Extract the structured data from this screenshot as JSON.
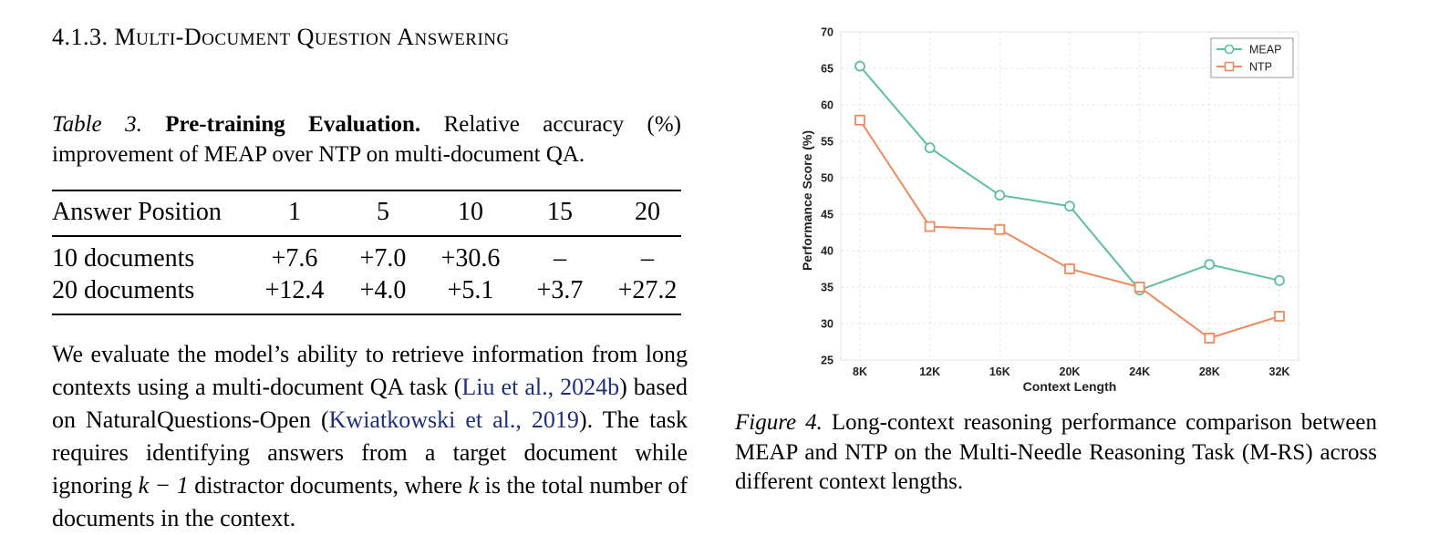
{
  "section": {
    "number": "4.1.3.",
    "words": [
      [
        "M",
        "ULTI"
      ],
      [
        "D",
        "OCUMENT"
      ],
      [
        "Q",
        "UESTION"
      ],
      [
        "A",
        "NSWERING"
      ]
    ]
  },
  "table_caption": {
    "label": "Table 3.",
    "bold": "Pre-training Evaluation.",
    "text": "Relative accuracy (%) improvement of MEAP over NTP on multi-document QA."
  },
  "table": {
    "header": [
      "Answer Position",
      "1",
      "5",
      "10",
      "15",
      "20"
    ],
    "rows": [
      [
        "10 documents",
        "+7.6",
        "+7.0",
        "+30.6",
        "–",
        "–"
      ],
      [
        "20 documents",
        "+12.4",
        "+4.0",
        "+5.1",
        "+3.7",
        "+27.2"
      ]
    ]
  },
  "paragraph": {
    "p1": "We evaluate the model’s ability to retrieve information from long contexts using a multi-document QA task (",
    "cite1": "Liu et al., 2024b",
    "p2": ") based on NaturalQuestions-Open (",
    "cite2": "Kwiatkowski et al., 2019",
    "p3": "). The task requires identifying answers from a target document while ignoring ",
    "math1": "k − 1",
    "p4": " distractor documents, where ",
    "math2": "k",
    "p5": " is the total number of documents in the context."
  },
  "figure_caption": {
    "label": "Figure 4.",
    "text": "Long-context reasoning performance comparison between MEAP and NTP on the Multi-Needle Reasoning Task (M-RS) across different context lengths."
  },
  "chart_data": {
    "type": "line",
    "categories": [
      "8K",
      "12K",
      "16K",
      "20K",
      "24K",
      "28K",
      "32K"
    ],
    "series": [
      {
        "name": "MEAP",
        "values": [
          65.3,
          54.1,
          47.6,
          46.1,
          34.6,
          38.1,
          35.9
        ],
        "color": "#5ebf9e",
        "marker": "circle"
      },
      {
        "name": "NTP",
        "values": [
          57.9,
          43.3,
          42.9,
          37.5,
          35.0,
          28.0,
          31.0
        ],
        "color": "#ee8a5e",
        "marker": "square"
      }
    ],
    "xlabel": "Context Length",
    "ylabel": "Performance Score (%)",
    "ylim": [
      25,
      70
    ],
    "yticks": [
      25,
      30,
      35,
      40,
      45,
      50,
      55,
      60,
      65,
      70
    ],
    "grid": true,
    "legend": "top-right"
  }
}
